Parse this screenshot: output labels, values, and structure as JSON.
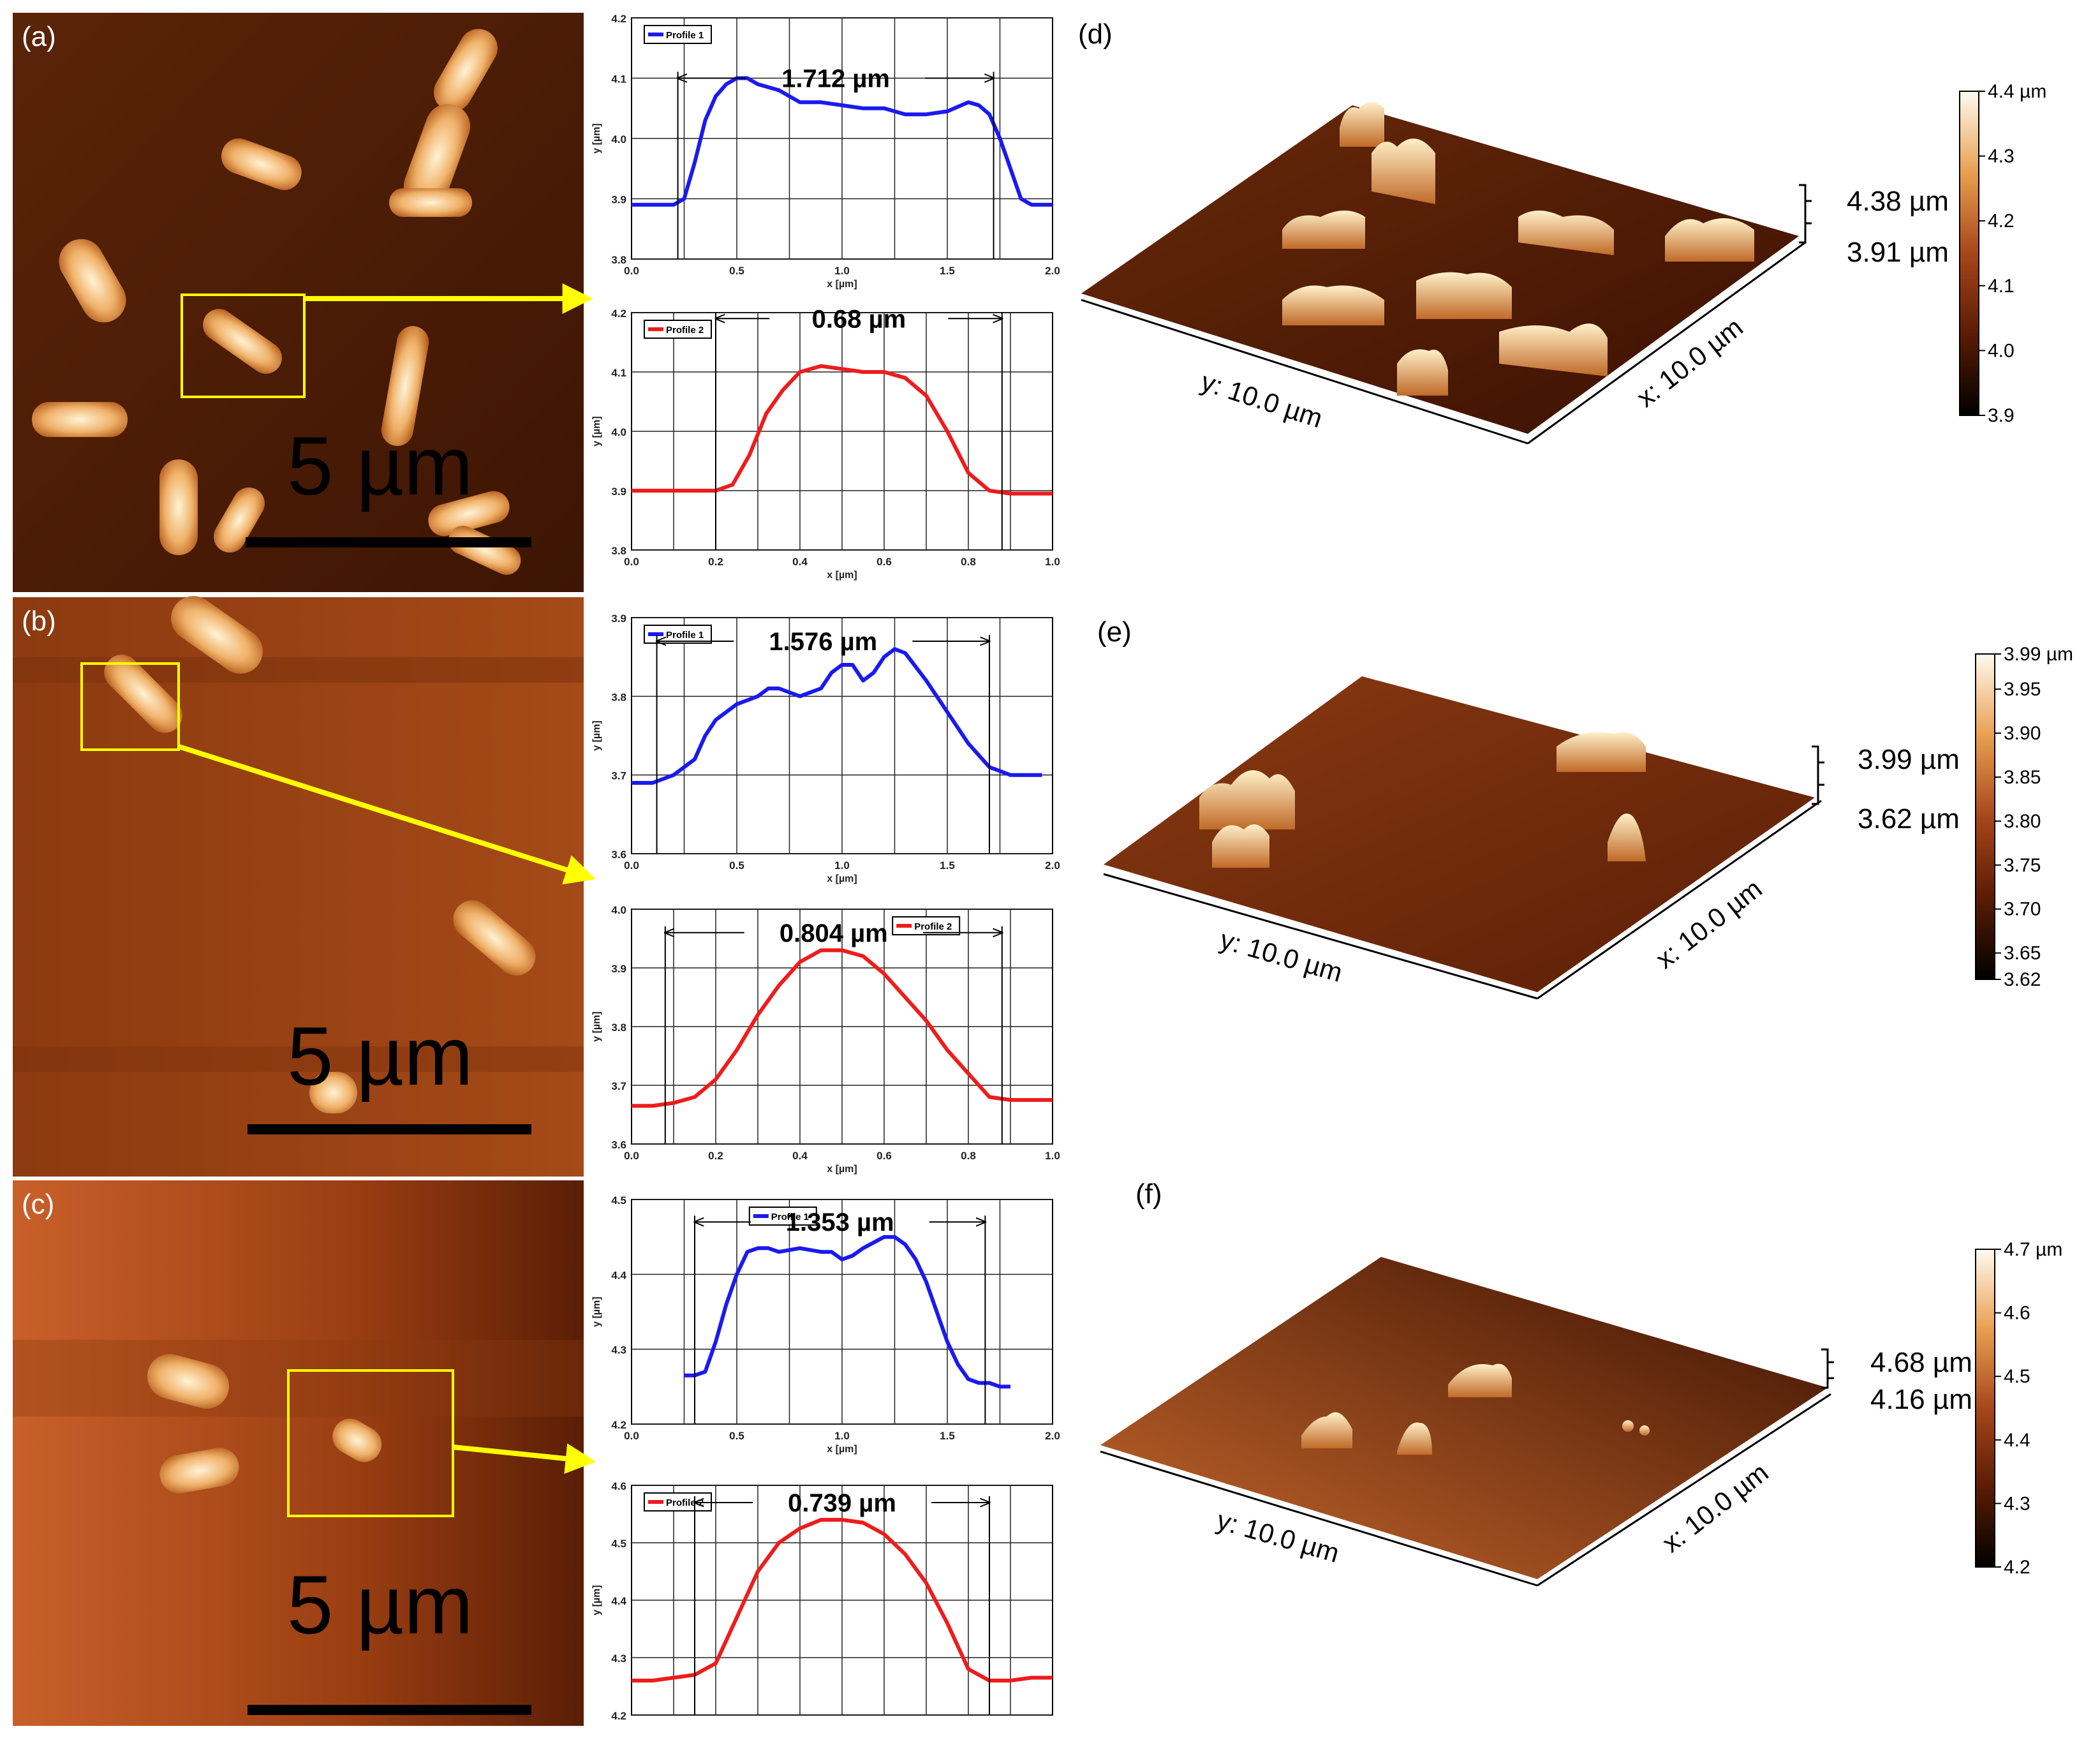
{
  "panels": {
    "a": {
      "label": "(a)",
      "scale": "5 µm"
    },
    "b": {
      "label": "(b)",
      "scale": "5 µm"
    },
    "c": {
      "label": "(c)",
      "scale": "5 µm"
    },
    "d": {
      "label": "(d)",
      "y_axis": "y: 10.0 µm",
      "x_axis": "x: 10.0 µm",
      "top": "4.38 µm",
      "bottom": "3.91 µm"
    },
    "e": {
      "label": "(e)",
      "y_axis": "y: 10.0 µm",
      "x_axis": "x: 10.0 µm",
      "top": "3.99 µm",
      "bottom": "3.62 µm"
    },
    "f": {
      "label": "(f)",
      "y_axis": "y: 10.0 µm",
      "x_axis": "x: 10.0 µm",
      "top": "4.68 µm",
      "bottom": "4.16 µm"
    }
  },
  "colors": {
    "profile1": "#1a1af0",
    "profile2": "#ee1c1c",
    "annotation": "#ffff00"
  },
  "chart_data": [
    {
      "id": "a1",
      "type": "line",
      "series": [
        {
          "name": "Profile 1",
          "x": [
            0,
            0.1,
            0.2,
            0.25,
            0.3,
            0.35,
            0.4,
            0.45,
            0.5,
            0.55,
            0.6,
            0.7,
            0.8,
            0.9,
            1.0,
            1.1,
            1.2,
            1.3,
            1.4,
            1.5,
            1.6,
            1.65,
            1.7,
            1.75,
            1.8,
            1.85,
            1.9,
            2.0
          ],
          "y": [
            3.89,
            3.89,
            3.89,
            3.9,
            3.96,
            4.03,
            4.07,
            4.09,
            4.1,
            4.1,
            4.09,
            4.08,
            4.06,
            4.06,
            4.055,
            4.05,
            4.05,
            4.04,
            4.04,
            4.045,
            4.06,
            4.055,
            4.04,
            4.0,
            3.95,
            3.9,
            3.89,
            3.89
          ]
        }
      ],
      "annotation": "1.712 µm",
      "xlabel": "x [µm]",
      "ylabel": "y [µm]",
      "xlim": [
        0,
        2.0
      ],
      "ylim": [
        3.8,
        4.2
      ],
      "xticks": [
        "0.0",
        "0.5",
        "1.0",
        "1.5",
        "2.0"
      ],
      "yticks": [
        "3.8",
        "3.9",
        "4.0",
        "4.1",
        "4.2"
      ],
      "legend": "top-left",
      "grid": true
    },
    {
      "id": "a2",
      "type": "line",
      "series": [
        {
          "name": "Profile 2",
          "x": [
            0,
            0.1,
            0.2,
            0.24,
            0.28,
            0.32,
            0.36,
            0.4,
            0.45,
            0.5,
            0.55,
            0.6,
            0.65,
            0.7,
            0.75,
            0.8,
            0.85,
            0.9,
            1.0
          ],
          "y": [
            3.9,
            3.9,
            3.9,
            3.91,
            3.96,
            4.03,
            4.07,
            4.1,
            4.11,
            4.105,
            4.1,
            4.1,
            4.09,
            4.06,
            4.0,
            3.93,
            3.9,
            3.895,
            3.895
          ]
        }
      ],
      "annotation": "0.68 µm",
      "xlabel": "x [µm]",
      "ylabel": "y [µm]",
      "xlim": [
        0,
        1.0
      ],
      "ylim": [
        3.8,
        4.2
      ],
      "xticks": [
        "0.0",
        "0.2",
        "0.4",
        "0.6",
        "0.8",
        "1.0"
      ],
      "yticks": [
        "3.8",
        "3.9",
        "4.0",
        "4.1",
        "4.2"
      ],
      "legend": "top-left",
      "grid": true
    },
    {
      "id": "b1",
      "type": "line",
      "series": [
        {
          "name": "Profile 1",
          "x": [
            0,
            0.1,
            0.2,
            0.3,
            0.35,
            0.4,
            0.5,
            0.6,
            0.65,
            0.7,
            0.8,
            0.9,
            0.95,
            1.0,
            1.05,
            1.1,
            1.15,
            1.2,
            1.25,
            1.3,
            1.4,
            1.5,
            1.6,
            1.7,
            1.8,
            1.9,
            1.95
          ],
          "y": [
            3.69,
            3.69,
            3.7,
            3.72,
            3.75,
            3.77,
            3.79,
            3.8,
            3.81,
            3.81,
            3.8,
            3.81,
            3.83,
            3.84,
            3.84,
            3.82,
            3.83,
            3.85,
            3.86,
            3.855,
            3.82,
            3.78,
            3.74,
            3.71,
            3.7,
            3.7,
            3.7
          ]
        }
      ],
      "annotation": "1.576 µm",
      "xlabel": "x [µm]",
      "ylabel": "y [µm]",
      "xlim": [
        0,
        2.0
      ],
      "ylim": [
        3.6,
        3.9
      ],
      "xticks": [
        "0.0",
        "0.5",
        "1.0",
        "1.5",
        "2.0"
      ],
      "yticks": [
        "3.6",
        "3.7",
        "3.8",
        "3.9"
      ],
      "legend": "top-left",
      "grid": true
    },
    {
      "id": "b2",
      "type": "line",
      "series": [
        {
          "name": "Profile 2",
          "x": [
            0,
            0.05,
            0.1,
            0.15,
            0.2,
            0.25,
            0.3,
            0.35,
            0.4,
            0.45,
            0.5,
            0.55,
            0.6,
            0.65,
            0.7,
            0.75,
            0.8,
            0.85,
            0.9,
            0.95,
            1.0
          ],
          "y": [
            3.665,
            3.665,
            3.67,
            3.68,
            3.71,
            3.76,
            3.82,
            3.87,
            3.91,
            3.93,
            3.93,
            3.92,
            3.89,
            3.85,
            3.81,
            3.76,
            3.72,
            3.68,
            3.675,
            3.675,
            3.675
          ]
        }
      ],
      "annotation": "0.804 µm",
      "xlabel": "x [µm]",
      "ylabel": "y [µm]",
      "xlim": [
        0,
        1.0
      ],
      "ylim": [
        3.6,
        4.0
      ],
      "xticks": [
        "0.0",
        "0.2",
        "0.4",
        "0.6",
        "0.8",
        "1.0"
      ],
      "yticks": [
        "3.6",
        "3.7",
        "3.8",
        "3.9",
        "4.0"
      ],
      "legend": "top-right",
      "grid": true
    },
    {
      "id": "c1",
      "type": "line",
      "series": [
        {
          "name": "Profile 1",
          "x": [
            0.25,
            0.3,
            0.35,
            0.4,
            0.45,
            0.5,
            0.55,
            0.6,
            0.65,
            0.7,
            0.8,
            0.9,
            0.95,
            1.0,
            1.05,
            1.1,
            1.2,
            1.25,
            1.3,
            1.35,
            1.4,
            1.45,
            1.5,
            1.55,
            1.6,
            1.65,
            1.7,
            1.75,
            1.8
          ],
          "y": [
            4.265,
            4.265,
            4.27,
            4.31,
            4.36,
            4.4,
            4.43,
            4.435,
            4.435,
            4.43,
            4.435,
            4.43,
            4.43,
            4.42,
            4.425,
            4.435,
            4.45,
            4.45,
            4.44,
            4.42,
            4.39,
            4.35,
            4.31,
            4.28,
            4.26,
            4.255,
            4.255,
            4.25,
            4.25
          ]
        }
      ],
      "annotation": "1.353 µm",
      "xlabel": "x [µm]",
      "ylabel": "y [µm]",
      "xlim": [
        0,
        2.0
      ],
      "ylim": [
        4.2,
        4.5
      ],
      "xticks": [
        "0.0",
        "0.5",
        "1.0",
        "1.5",
        "2.0"
      ],
      "yticks": [
        "4.2",
        "4.3",
        "4.4",
        "4.5"
      ],
      "legend": "top-center",
      "grid": true
    },
    {
      "id": "c2",
      "type": "line",
      "series": [
        {
          "name": "Profile 2",
          "x": [
            0,
            0.05,
            0.1,
            0.15,
            0.2,
            0.25,
            0.3,
            0.35,
            0.4,
            0.45,
            0.5,
            0.55,
            0.6,
            0.65,
            0.7,
            0.75,
            0.8,
            0.85,
            0.9,
            0.95,
            1.0
          ],
          "y": [
            4.26,
            4.26,
            4.265,
            4.27,
            4.29,
            4.37,
            4.45,
            4.5,
            4.525,
            4.54,
            4.54,
            4.535,
            4.515,
            4.48,
            4.43,
            4.36,
            4.28,
            4.26,
            4.26,
            4.265,
            4.265
          ]
        }
      ],
      "annotation": "0.739 µm",
      "xlabel": "x [µm]",
      "ylabel": "y [µm]",
      "xlim": [
        0,
        1.0
      ],
      "ylim": [
        4.2,
        4.6
      ],
      "xticks": [],
      "yticks": [
        "4.2",
        "4.3",
        "4.4",
        "4.5",
        "4.6"
      ],
      "legend": "top-left",
      "grid": true
    },
    {
      "id": "d-scale",
      "type": "heatmap",
      "colorbar": [
        "3.9",
        "4.0",
        "4.1",
        "4.2",
        "4.3",
        "4.4 µm"
      ],
      "range": [
        3.9,
        4.4
      ]
    },
    {
      "id": "e-scale",
      "type": "heatmap",
      "colorbar": [
        "3.62",
        "3.65",
        "3.70",
        "3.75",
        "3.80",
        "3.85",
        "3.90",
        "3.95",
        "3.99 µm"
      ],
      "range": [
        3.62,
        3.99
      ]
    },
    {
      "id": "f-scale",
      "type": "heatmap",
      "colorbar": [
        "4.2",
        "4.3",
        "4.4",
        "4.5",
        "4.6",
        "4.7 µm"
      ],
      "range": [
        4.2,
        4.7
      ]
    }
  ]
}
